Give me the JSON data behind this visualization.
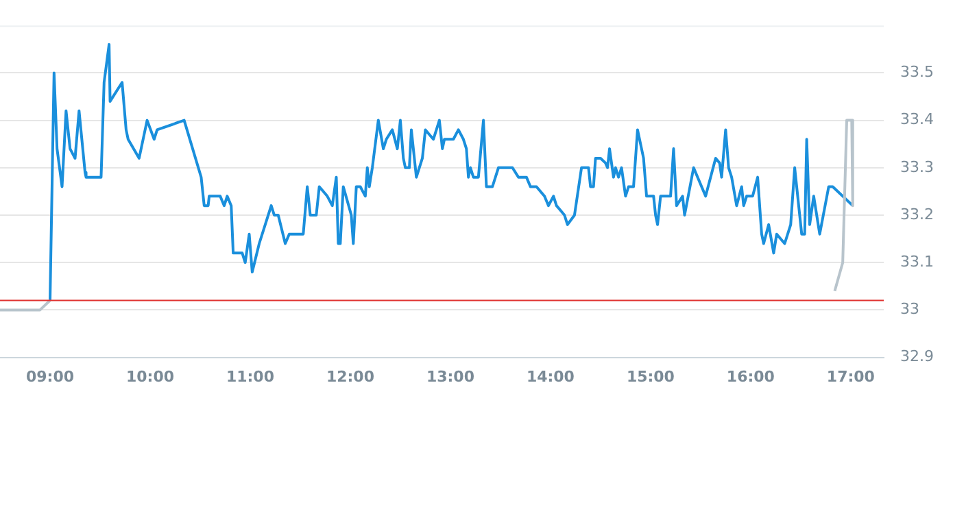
{
  "chart_data": {
    "type": "line",
    "xlim": [
      8.5,
      17.33
    ],
    "xticks": [
      {
        "value": 9,
        "label": "09:00"
      },
      {
        "value": 10,
        "label": "10:00"
      },
      {
        "value": 11,
        "label": "11:00"
      },
      {
        "value": 12,
        "label": "12:00"
      },
      {
        "value": 13,
        "label": "13:00"
      },
      {
        "value": 14,
        "label": "14:00"
      },
      {
        "value": 15,
        "label": "15:00"
      },
      {
        "value": 16,
        "label": "16:00"
      },
      {
        "value": 17,
        "label": "17:00"
      }
    ],
    "ylim": [
      32.9,
      33.6
    ],
    "yticks": [
      32.9,
      33,
      33.1,
      33.2,
      33.3,
      33.4,
      33.5
    ],
    "grid": "y",
    "legend": false,
    "marker": "none",
    "line_style": "solid",
    "ref_lines": [
      {
        "axis": "y",
        "value": 33.02,
        "color": "#e0312f"
      }
    ],
    "series": [
      {
        "color": "#b8c4cc",
        "x": [
          8.5,
          8.9,
          9.0
        ],
        "values": [
          33.0,
          33.0,
          33.02
        ]
      },
      {
        "color": "#b8c4cc",
        "x": [
          16.84,
          16.92,
          16.96,
          17.01,
          17.02
        ],
        "values": [
          33.04,
          33.1,
          33.4,
          33.4,
          33.22
        ]
      },
      {
        "color": "#1a8fdc",
        "x": [
          9.0,
          9.04,
          9.07,
          9.12,
          9.16,
          9.2,
          9.25,
          9.29,
          9.35,
          9.36,
          9.51,
          9.54,
          9.59,
          9.6,
          9.72,
          9.76,
          9.78,
          9.89,
          9.97,
          10.04,
          10.07,
          10.34,
          10.51,
          10.54,
          10.58,
          10.59,
          10.7,
          10.74,
          10.77,
          10.81,
          10.83,
          10.92,
          10.95,
          10.99,
          11.02,
          11.09,
          11.21,
          11.24,
          11.28,
          11.35,
          11.39,
          11.53,
          11.57,
          11.6,
          11.66,
          11.69,
          11.77,
          11.82,
          11.86,
          11.88,
          11.9,
          11.93,
          12.01,
          12.03,
          12.06,
          12.1,
          12.15,
          12.17,
          12.19,
          12.22,
          12.28,
          12.33,
          12.36,
          12.42,
          12.47,
          12.5,
          12.53,
          12.55,
          12.59,
          12.61,
          12.66,
          12.72,
          12.75,
          12.83,
          12.89,
          12.92,
          12.94,
          13.03,
          13.08,
          13.13,
          13.16,
          13.18,
          13.2,
          13.23,
          13.28,
          13.33,
          13.36,
          13.42,
          13.48,
          13.62,
          13.68,
          13.76,
          13.8,
          13.86,
          13.94,
          13.98,
          14.03,
          14.06,
          14.1,
          14.14,
          14.17,
          14.24,
          14.31,
          14.38,
          14.4,
          14.43,
          14.45,
          14.5,
          14.55,
          14.57,
          14.59,
          14.63,
          14.65,
          14.68,
          14.71,
          14.75,
          14.78,
          14.83,
          14.87,
          14.93,
          14.96,
          15.03,
          15.05,
          15.07,
          15.1,
          15.2,
          15.23,
          15.26,
          15.32,
          15.34,
          15.43,
          15.55,
          15.65,
          15.69,
          15.71,
          15.75,
          15.78,
          15.81,
          15.86,
          15.91,
          15.93,
          15.96,
          16.02,
          16.07,
          16.11,
          16.13,
          16.18,
          16.23,
          16.26,
          16.34,
          16.4,
          16.44,
          16.51,
          16.54,
          16.56,
          16.59,
          16.63,
          16.69,
          16.78,
          16.82,
          17.02
        ],
        "values": [
          33.02,
          33.5,
          33.34,
          33.26,
          33.42,
          33.34,
          33.32,
          33.42,
          33.29,
          33.28,
          33.28,
          33.48,
          33.56,
          33.44,
          33.48,
          33.38,
          33.36,
          33.32,
          33.4,
          33.36,
          33.38,
          33.4,
          33.28,
          33.22,
          33.22,
          33.24,
          33.24,
          33.22,
          33.24,
          33.22,
          33.12,
          33.12,
          33.1,
          33.16,
          33.08,
          33.14,
          33.22,
          33.2,
          33.2,
          33.14,
          33.16,
          33.16,
          33.26,
          33.2,
          33.2,
          33.26,
          33.24,
          33.22,
          33.28,
          33.14,
          33.14,
          33.26,
          33.2,
          33.14,
          33.26,
          33.26,
          33.24,
          33.3,
          33.26,
          33.3,
          33.4,
          33.34,
          33.36,
          33.38,
          33.34,
          33.4,
          33.32,
          33.3,
          33.3,
          33.38,
          33.28,
          33.32,
          33.38,
          33.36,
          33.4,
          33.34,
          33.36,
          33.36,
          33.38,
          33.36,
          33.34,
          33.28,
          33.3,
          33.28,
          33.28,
          33.4,
          33.26,
          33.26,
          33.3,
          33.3,
          33.28,
          33.28,
          33.26,
          33.26,
          33.24,
          33.22,
          33.24,
          33.22,
          33.21,
          33.2,
          33.18,
          33.2,
          33.3,
          33.3,
          33.26,
          33.26,
          33.32,
          33.32,
          33.31,
          33.3,
          33.34,
          33.28,
          33.3,
          33.28,
          33.3,
          33.24,
          33.26,
          33.26,
          33.38,
          33.32,
          33.24,
          33.24,
          33.2,
          33.18,
          33.24,
          33.24,
          33.34,
          33.22,
          33.24,
          33.2,
          33.3,
          33.24,
          33.32,
          33.31,
          33.28,
          33.38,
          33.3,
          33.28,
          33.22,
          33.26,
          33.22,
          33.24,
          33.24,
          33.28,
          33.16,
          33.14,
          33.18,
          33.12,
          33.16,
          33.14,
          33.18,
          33.3,
          33.16,
          33.16,
          33.36,
          33.18,
          33.24,
          33.16,
          33.26,
          33.26,
          33.22
        ]
      }
    ]
  }
}
